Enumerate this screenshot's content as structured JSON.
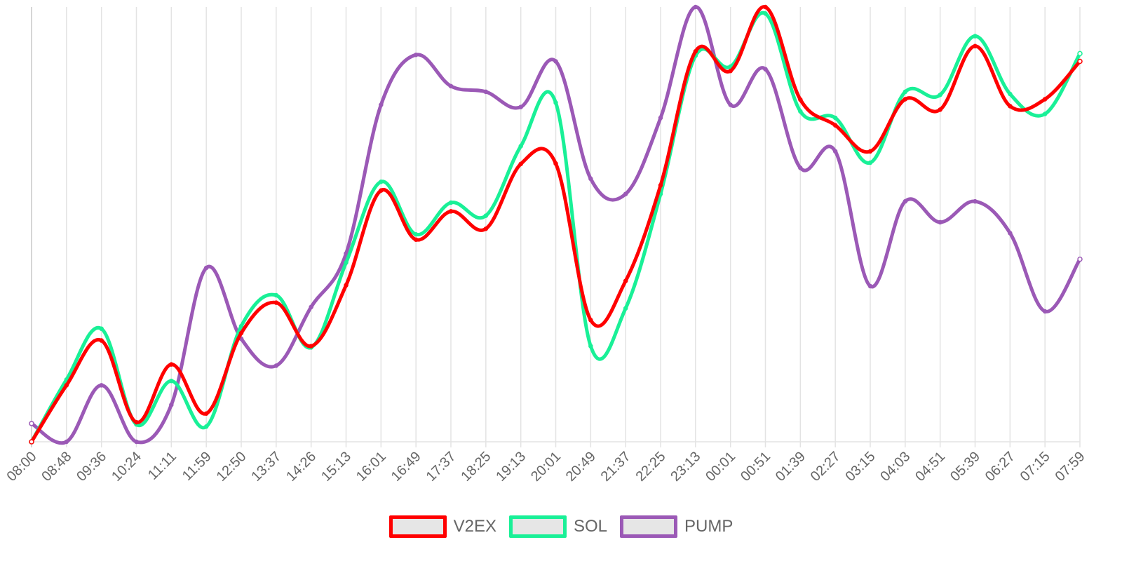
{
  "chart_data": {
    "type": "line",
    "title": "",
    "xlabel": "",
    "ylabel": "",
    "grid": "vertical",
    "legend_position": "bottom",
    "y_axis_labels_shown": false,
    "ylim": [
      0,
      100
    ],
    "x": [
      "08:00",
      "08:48",
      "09:36",
      "10:24",
      "11:11",
      "11:59",
      "12:50",
      "13:37",
      "14:26",
      "15:13",
      "16:01",
      "16:49",
      "17:37",
      "18:25",
      "19:13",
      "20:01",
      "20:49",
      "21:37",
      "22:25",
      "23:13",
      "00:01",
      "00:51",
      "01:39",
      "02:27",
      "03:15",
      "04:03",
      "04:51",
      "05:39",
      "06:27",
      "07:15",
      "07:59"
    ],
    "series": [
      {
        "name": "V2EX",
        "color": "#ff0000",
        "values": [
          0.0,
          13.0,
          23.3,
          4.5,
          17.8,
          6.5,
          25.0,
          32.0,
          22.0,
          36.0,
          57.8,
          46.5,
          53.0,
          49.0,
          63.9,
          64.0,
          28.0,
          37.0,
          59.0,
          89.8,
          85.3,
          100.0,
          78.7,
          72.8,
          66.8,
          78.8,
          76.4,
          91.0,
          77.2,
          78.8,
          87.5
        ]
      },
      {
        "name": "SOL",
        "color": "#19f097",
        "values": [
          0.0,
          14.3,
          26.0,
          4.0,
          14.0,
          3.5,
          26.6,
          33.7,
          21.7,
          41.2,
          59.8,
          47.7,
          55.0,
          52.0,
          68.0,
          78.0,
          22.0,
          30.7,
          57.0,
          88.8,
          86.3,
          98.5,
          76.0,
          74.5,
          64.2,
          80.5,
          79.8,
          93.3,
          80.0,
          75.4,
          89.3
        ]
      },
      {
        "name": "PUMP",
        "color": "#9b59b6",
        "values": [
          4.2,
          0.0,
          13.0,
          0.0,
          8.5,
          40.0,
          23.7,
          17.5,
          31.0,
          43.3,
          77.5,
          89.0,
          81.8,
          80.5,
          77.0,
          87.5,
          60.5,
          57.0,
          74.5,
          100.0,
          77.5,
          85.7,
          63.0,
          66.8,
          35.8,
          55.3,
          50.5,
          55.3,
          48.0,
          30.0,
          42.0
        ]
      }
    ]
  }
}
